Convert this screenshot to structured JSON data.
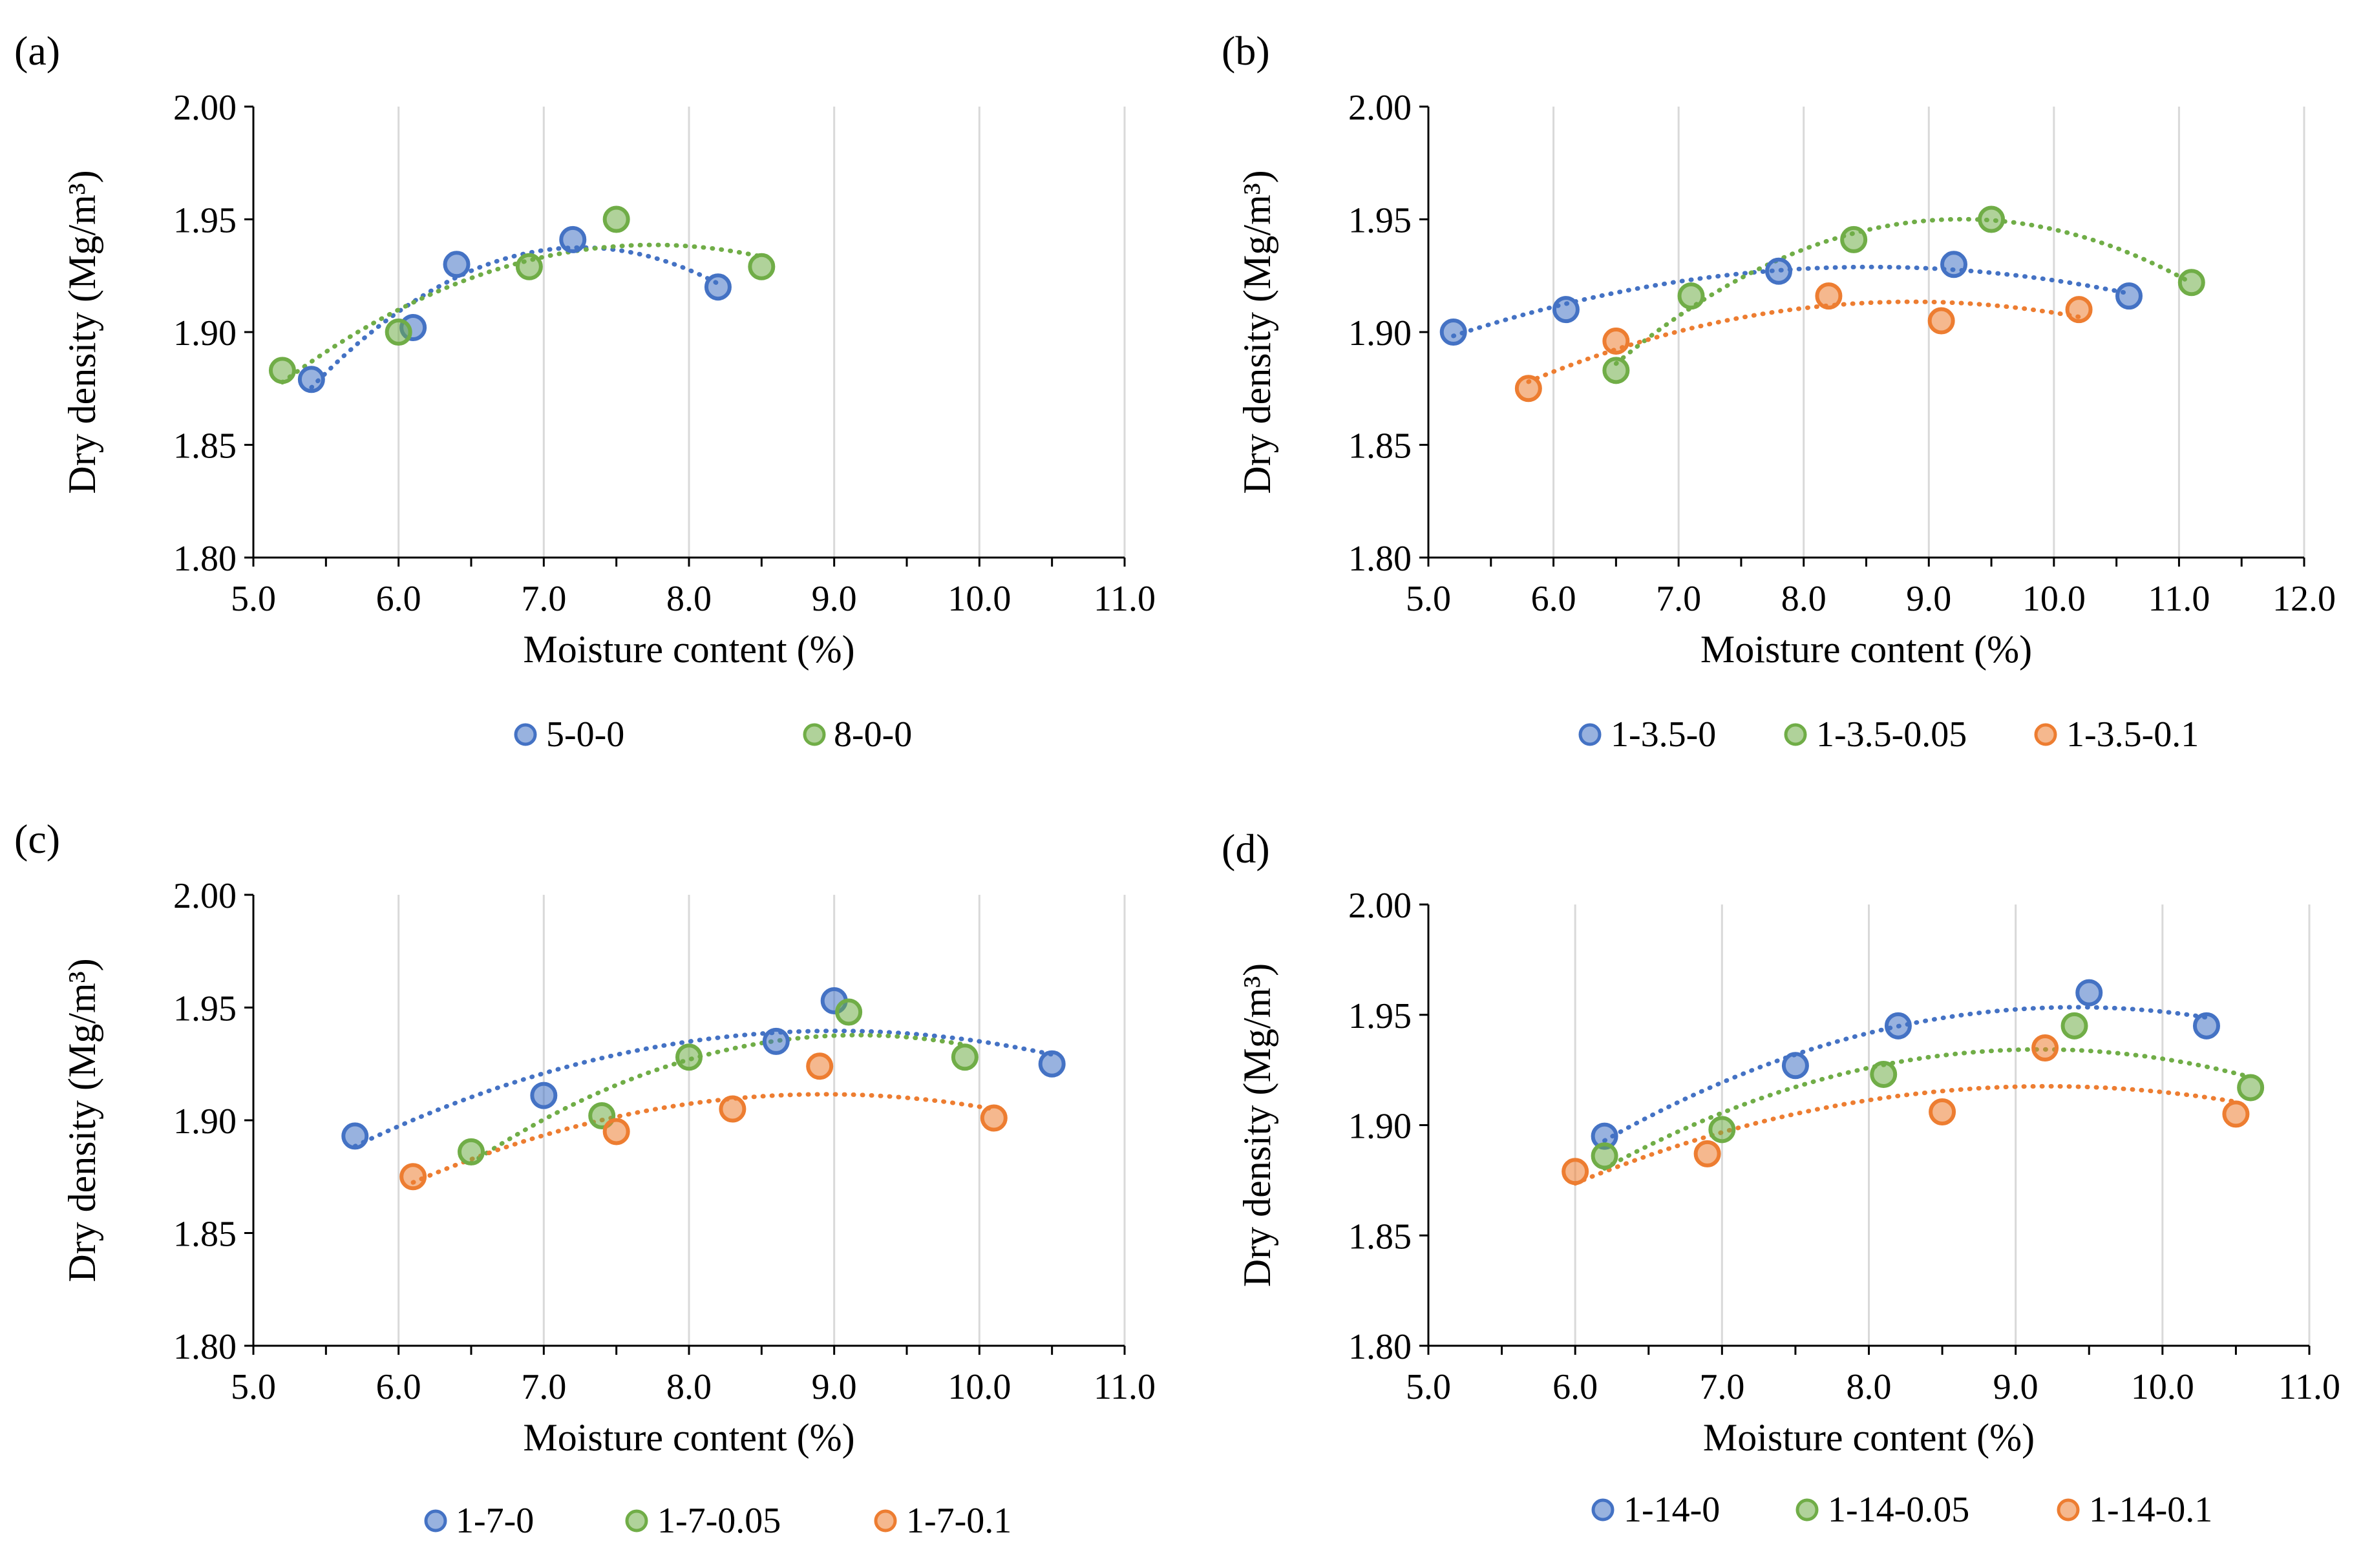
{
  "figure": {
    "colors": {
      "blue": "#4472C4",
      "green": "#70AD47",
      "orange": "#ED7D31",
      "grid": "#D9D9D9",
      "axis": "#000000"
    }
  },
  "chart_data": [
    {
      "panel": "a",
      "panel_label": "(a)",
      "type": "scatter",
      "xlabel": "Moisture content (%)",
      "ylabel": "Dry density (Mg/m³)",
      "xlim": [
        5.0,
        11.0
      ],
      "ylim": [
        1.8,
        2.0
      ],
      "xticks": [
        "5.0",
        "6.0",
        "7.0",
        "8.0",
        "9.0",
        "10.0",
        "11.0"
      ],
      "yticks": [
        "1.80",
        "1.85",
        "1.90",
        "1.95",
        "2.00"
      ],
      "grid": "vertical",
      "trendline": "polynomial-order-2",
      "series": [
        {
          "name": "5-0-0",
          "color": "blue",
          "x": [
            5.4,
            6.1,
            6.4,
            7.2,
            8.2
          ],
          "y": [
            1.879,
            1.902,
            1.93,
            1.941,
            1.92
          ]
        },
        {
          "name": "8-0-0",
          "color": "green",
          "x": [
            5.2,
            6.0,
            6.9,
            7.5,
            8.5
          ],
          "y": [
            1.883,
            1.9,
            1.929,
            1.95,
            1.929
          ]
        }
      ]
    },
    {
      "panel": "b",
      "panel_label": "(b)",
      "type": "scatter",
      "xlabel": "Moisture content (%)",
      "ylabel": "Dry density (Mg/m³)",
      "xlim": [
        5.0,
        12.0
      ],
      "ylim": [
        1.8,
        2.0
      ],
      "xticks": [
        "5.0",
        "6.0",
        "7.0",
        "8.0",
        "9.0",
        "10.0",
        "11.0",
        "12.0"
      ],
      "yticks": [
        "1.80",
        "1.85",
        "1.90",
        "1.95",
        "2.00"
      ],
      "grid": "vertical",
      "trendline": "polynomial-order-2",
      "series": [
        {
          "name": "1-3.5-0",
          "color": "blue",
          "x": [
            5.2,
            6.1,
            7.8,
            9.2,
            10.6
          ],
          "y": [
            1.9,
            1.91,
            1.927,
            1.93,
            1.916
          ]
        },
        {
          "name": "1-3.5-0.05",
          "color": "green",
          "x": [
            6.5,
            7.1,
            8.4,
            9.5,
            11.1
          ],
          "y": [
            1.883,
            1.916,
            1.941,
            1.95,
            1.922
          ]
        },
        {
          "name": "1-3.5-0.1",
          "color": "orange",
          "x": [
            5.8,
            6.5,
            8.2,
            9.1,
            10.2
          ],
          "y": [
            1.875,
            1.896,
            1.916,
            1.905,
            1.91
          ]
        }
      ]
    },
    {
      "panel": "c",
      "panel_label": "(c)",
      "type": "scatter",
      "xlabel": "Moisture content (%)",
      "ylabel": "Dry density (Mg/m³)",
      "xlim": [
        5.0,
        11.0
      ],
      "ylim": [
        1.8,
        2.0
      ],
      "xticks": [
        "5.0",
        "6.0",
        "7.0",
        "8.0",
        "9.0",
        "10.0",
        "11.0"
      ],
      "yticks": [
        "1.80",
        "1.85",
        "1.90",
        "1.95",
        "2.00"
      ],
      "grid": "vertical",
      "trendline": "polynomial-order-2",
      "series": [
        {
          "name": "1-7-0",
          "color": "blue",
          "x": [
            5.7,
            7.0,
            8.6,
            9.0,
            10.5
          ],
          "y": [
            1.893,
            1.911,
            1.935,
            1.953,
            1.925
          ]
        },
        {
          "name": "1-7-0.05",
          "color": "green",
          "x": [
            6.5,
            7.4,
            8.0,
            9.1,
            9.9
          ],
          "y": [
            1.886,
            1.902,
            1.928,
            1.948,
            1.928
          ]
        },
        {
          "name": "1-7-0.1",
          "color": "orange",
          "x": [
            6.1,
            7.5,
            8.3,
            8.9,
            10.1
          ],
          "y": [
            1.875,
            1.895,
            1.905,
            1.924,
            1.901
          ]
        }
      ]
    },
    {
      "panel": "d",
      "panel_label": "(d)",
      "type": "scatter",
      "xlabel": "Moisture content (%)",
      "ylabel": "Dry density (Mg/m³)",
      "xlim": [
        5.0,
        11.0
      ],
      "ylim": [
        1.8,
        2.0
      ],
      "xticks": [
        "5.0",
        "6.0",
        "7.0",
        "8.0",
        "9.0",
        "10.0",
        "11.0"
      ],
      "yticks": [
        "1.80",
        "1.85",
        "1.90",
        "1.95",
        "2.00"
      ],
      "grid": "vertical",
      "trendline": "polynomial-order-2",
      "series": [
        {
          "name": "1-14-0",
          "color": "blue",
          "x": [
            6.2,
            7.5,
            8.2,
            9.5,
            10.3
          ],
          "y": [
            1.895,
            1.927,
            1.945,
            1.96,
            1.945
          ]
        },
        {
          "name": "1-14-0.05",
          "color": "green",
          "x": [
            6.2,
            7.0,
            8.1,
            9.4,
            10.6
          ],
          "y": [
            1.886,
            1.898,
            1.923,
            1.945,
            1.917
          ]
        },
        {
          "name": "1-14-0.1",
          "color": "orange",
          "x": [
            6.0,
            6.9,
            8.5,
            9.2,
            10.5
          ],
          "y": [
            1.879,
            1.887,
            1.906,
            1.935,
            1.905
          ]
        }
      ]
    }
  ]
}
